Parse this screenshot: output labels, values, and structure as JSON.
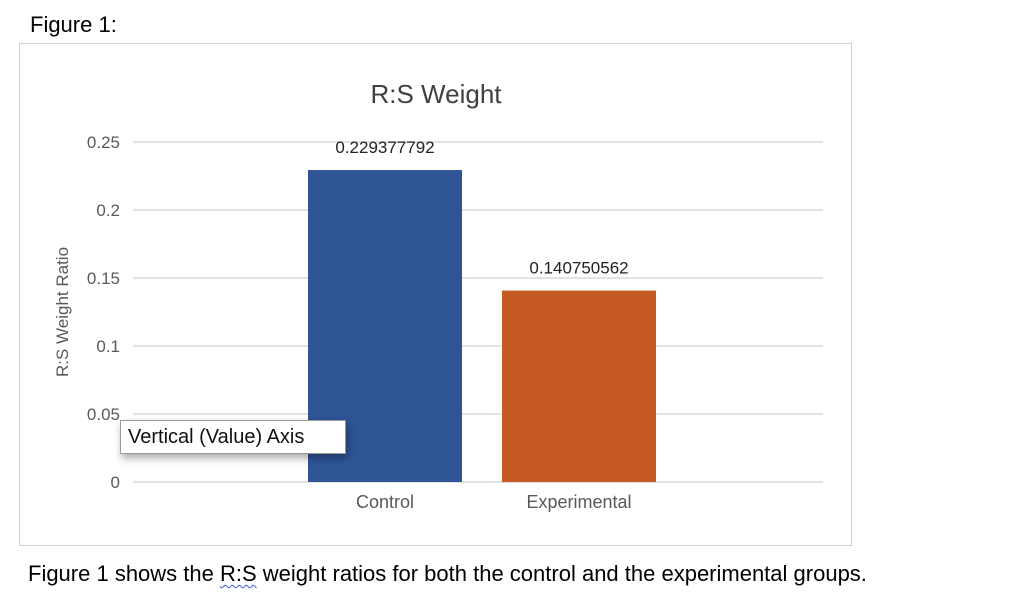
{
  "figure_label": "Figure 1:",
  "tooltip": "Vertical (Value) Axis",
  "caption": {
    "before": "Figure 1 shows the ",
    "flagged_word": "R:S",
    "after": " weight ratios for both the control and the experimental groups."
  },
  "colors": {
    "control": "#2F5597",
    "experimental": "#C55A22",
    "gridline": "#d9d9d9",
    "tick_text": "#595959",
    "title_text": "#404040"
  },
  "chart_data": {
    "type": "bar",
    "title": "R:S Weight",
    "xlabel": "",
    "ylabel": "R:S Weight Ratio",
    "categories": [
      "Control",
      "Experimental"
    ],
    "values": [
      0.229377792,
      0.140750562
    ],
    "data_labels": [
      "0.229377792",
      "0.140750562"
    ],
    "ylim": [
      0,
      0.25
    ],
    "yticks": [
      0,
      0.05,
      0.1,
      0.15,
      0.2,
      0.25
    ],
    "ytick_labels": [
      "0",
      "0.05",
      "0.1",
      "0.15",
      "0.2",
      "0.25"
    ],
    "grid": true,
    "legend": "none"
  }
}
